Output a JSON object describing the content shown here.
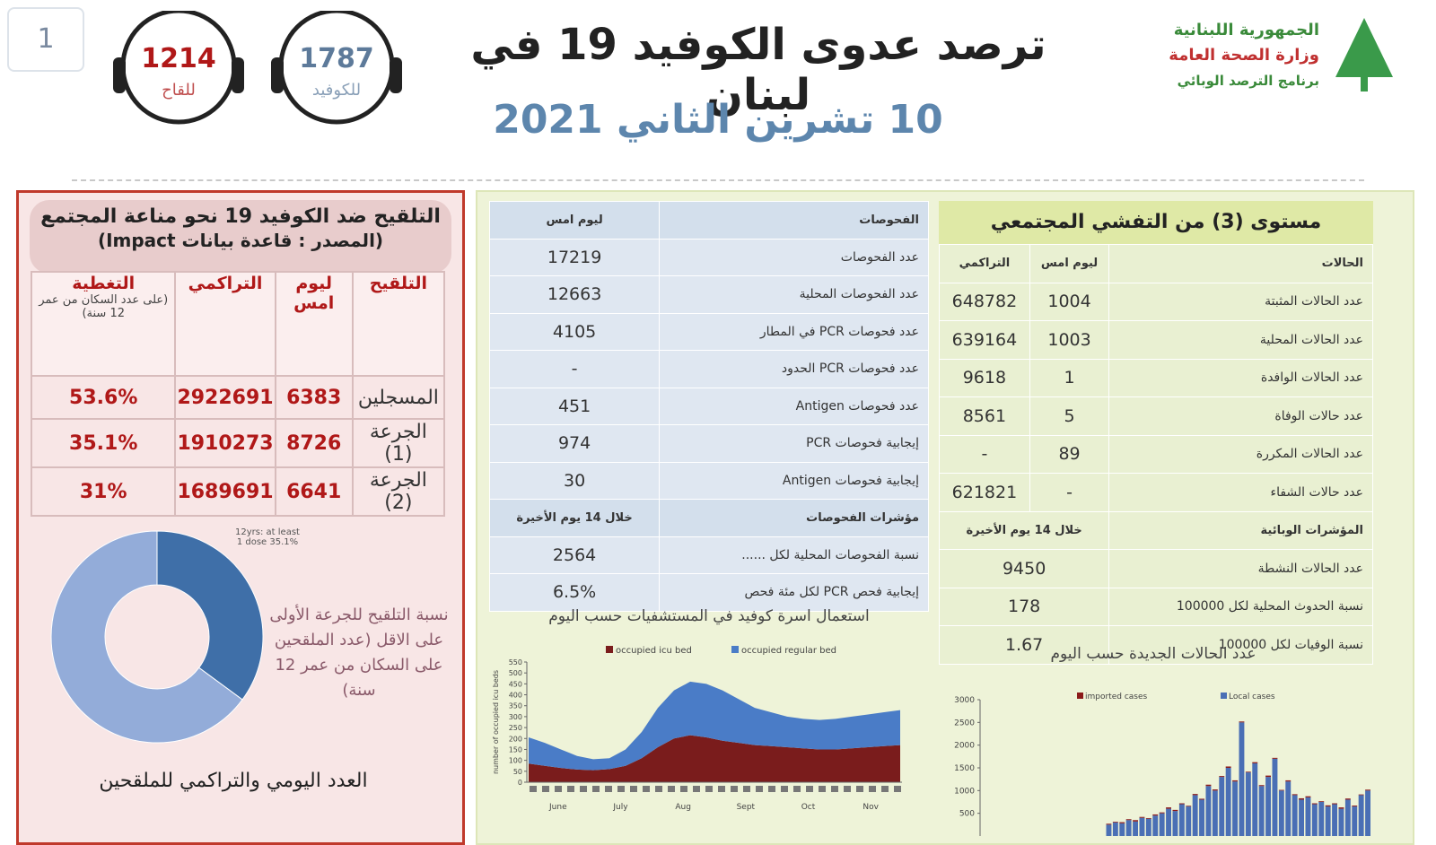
{
  "page_number": "1",
  "hotlines": [
    {
      "number": "1214",
      "label": "للقاح"
    },
    {
      "number": "1787",
      "label": "للكوفيد"
    }
  ],
  "header": {
    "ministry": [
      "الجمهورية اللبنانية",
      "وزارة الصحة العامة",
      "برنامج الترصد الوبائي"
    ],
    "title": "ترصد عدوى الكوفيد 19 في لبنان",
    "date": "10 تشرين الثاني 2021"
  },
  "vaccination": {
    "title": "التلقيح ضد الكوفيد 19  نحو مناعة المجتمع",
    "source": "(المصدر : قاعدة بيانات Impact)",
    "table": {
      "header": [
        "التلقيح",
        "ليوم امس",
        "التراكمي",
        "التغطية"
      ],
      "coverage_note": "(على عدد السكان من عمر 12 سنة)",
      "rows": [
        [
          "المسجلين",
          "6383",
          "2922691",
          "53.6%"
        ],
        [
          "الجرعة (1)",
          "8726",
          "1910273",
          "35.1%"
        ],
        [
          "الجرعة (2)",
          "6641",
          "1689691",
          "31%"
        ]
      ]
    },
    "donut": {
      "values": [
        35.1,
        64.9
      ],
      "colors": [
        "#3f6fa8",
        "#93acd9"
      ],
      "label": "12yrs: at least 1 dose 35.1%",
      "caption": "نسبة التلقيح للجرعة الأولى على الاقل (عدد الملقحين على السكان من عمر 12 سنة)"
    },
    "footer": "العدد اليومي والتراكمي للملقحين"
  },
  "tests": {
    "header": [
      "الفحوصات",
      "ليوم امس"
    ],
    "rows": [
      [
        "عدد الفحوصات",
        "17219"
      ],
      [
        "عدد الفحوصات المحلية",
        "12663"
      ],
      [
        "عدد فحوصات PCR في المطار",
        "4105"
      ],
      [
        "عدد فحوصات PCR الحدود",
        "-"
      ],
      [
        "عدد فحوصات Antigen",
        "451"
      ],
      [
        "إيجابية فحوصات PCR",
        "974"
      ],
      [
        "إيجابية فحوصات Antigen",
        "30"
      ]
    ],
    "indicators_header": [
      "مؤشرات الفحوصات",
      "خلال 14 يوم الأخيرة"
    ],
    "indicators": [
      [
        "نسبة الفحوصات المحلية لكل ......",
        "2564"
      ],
      [
        "إيجابية فحص PCR لكل مئة فحص",
        "6.5%"
      ]
    ]
  },
  "cases": {
    "title": "مستوى (3) من التفشي المجتمعي",
    "header": [
      "الحالات",
      "ليوم امس",
      "التراكمي"
    ],
    "rows": [
      [
        "عدد الحالات المثبتة",
        "1004",
        "648782"
      ],
      [
        "عدد الحالات المحلية",
        "1003",
        "639164"
      ],
      [
        "عدد الحالات الوافدة",
        "1",
        "9618"
      ],
      [
        "عدد حالات الوفاة",
        "5",
        "8561"
      ],
      [
        "عدد الحالات المكررة",
        "89",
        "-"
      ],
      [
        "عدد حالات الشفاء",
        "-",
        "621821"
      ]
    ],
    "indicators_header": [
      "المؤشرات الوبائية",
      "خلال 14 يوم الأخيرة"
    ],
    "indicators": [
      [
        "عدد الحالات النشطة",
        "9450"
      ],
      [
        "نسبة الحدوث المحلية لكل 100000",
        "178"
      ],
      [
        "نسبة الوفيات لكل 100000",
        "1.67"
      ]
    ]
  },
  "hospital_chart": {
    "type": "area",
    "title": "استعمال اسرة كوفيد في المستشفيات حسب اليوم",
    "y_label": "number of occupied icu beds",
    "months": [
      "June",
      "July",
      "Aug",
      "Sept",
      "Oct",
      "Nov"
    ],
    "ylim": [
      0,
      550
    ],
    "yticks": [
      0,
      50,
      100,
      150,
      200,
      250,
      300,
      350,
      400,
      450,
      500,
      550
    ],
    "series": [
      {
        "name": "occupied icu bed",
        "color": "#7a1c1c",
        "values": [
          85,
          75,
          65,
          58,
          55,
          60,
          75,
          110,
          160,
          200,
          215,
          205,
          190,
          180,
          170,
          165,
          160,
          155,
          150,
          150,
          155,
          160,
          165,
          170
        ]
      },
      {
        "name": "occupied regular bed",
        "color": "#4a7cc7",
        "values": [
          120,
          105,
          85,
          62,
          50,
          50,
          75,
          120,
          180,
          220,
          245,
          245,
          230,
          200,
          170,
          155,
          140,
          135,
          135,
          140,
          145,
          150,
          155,
          160
        ]
      }
    ]
  },
  "cases_chart": {
    "type": "bar",
    "title": "عدد الحالات الجديدة حسب اليوم",
    "ylim": [
      0,
      3000
    ],
    "yticks": [
      500,
      1000,
      1500,
      2000,
      2500,
      3000
    ],
    "series": [
      {
        "name": "Local cases",
        "color": "#4a6fb5",
        "values": [
          250,
          300,
          280,
          350,
          320,
          400,
          380,
          450,
          500,
          600,
          550,
          700,
          650,
          900,
          800,
          1100,
          1000,
          1300,
          1500,
          1200,
          2500,
          1400,
          1600,
          1100,
          1300,
          1700,
          1000,
          1200,
          900,
          800,
          850,
          700,
          750,
          650,
          700,
          600,
          800,
          650,
          900,
          1000
        ]
      },
      {
        "name": "imported cases",
        "color": "#8b1a1a",
        "values": [
          20,
          15,
          25,
          20,
          30,
          20,
          15,
          25,
          20,
          30,
          25,
          20,
          15,
          25,
          20,
          30,
          25,
          20,
          30,
          25,
          20,
          15,
          25,
          20,
          30,
          20,
          15,
          25,
          20,
          30,
          25,
          20,
          15,
          25,
          20,
          30,
          25,
          20,
          15,
          20
        ]
      }
    ]
  }
}
